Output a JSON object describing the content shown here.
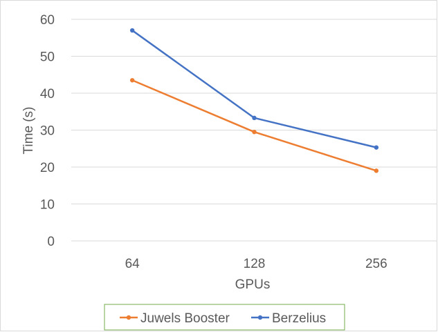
{
  "chart_data": {
    "type": "line",
    "title": "",
    "xlabel": "GPUs",
    "ylabel": "Time (s)",
    "categories": [
      "64",
      "128",
      "256"
    ],
    "ylim": [
      0,
      60
    ],
    "yticks": [
      0,
      10,
      20,
      30,
      40,
      50,
      60
    ],
    "grid": true,
    "legend_position": "bottom",
    "series": [
      {
        "name": "Juwels Booster",
        "color": "#ED7D31",
        "values": [
          43.5,
          29.5,
          19.0
        ]
      },
      {
        "name": "Berzelius",
        "color": "#4472C4",
        "values": [
          57.0,
          33.3,
          25.3
        ]
      }
    ]
  }
}
